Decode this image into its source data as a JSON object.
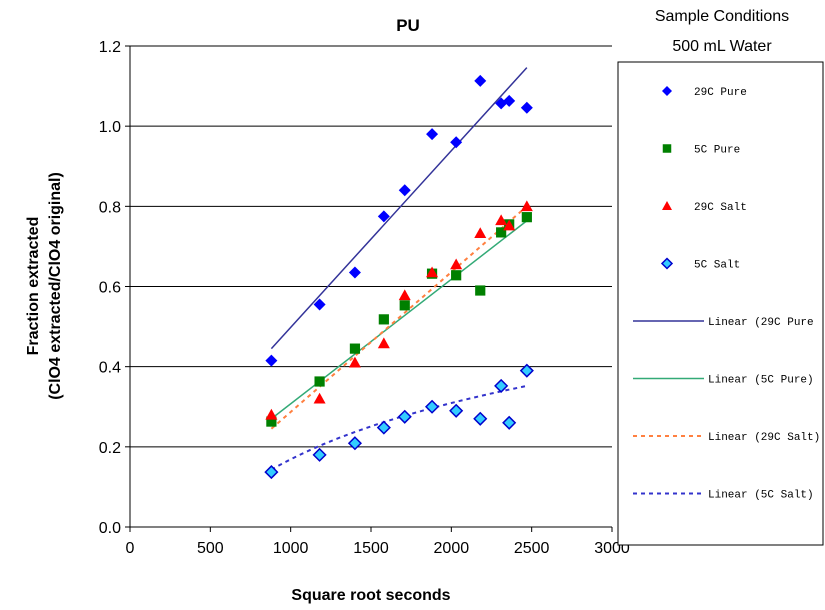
{
  "chart_data": {
    "type": "scatter",
    "title": "PU",
    "xlabel": "Square root seconds",
    "ylabel_line1": "Fraction extracted",
    "ylabel_line2": "(ClO4 extracted/ClO4 original)",
    "xlim": [
      0,
      3000
    ],
    "ylim": [
      0,
      1.2
    ],
    "x_ticks": [
      0,
      500,
      1000,
      1500,
      2000,
      2500,
      3000
    ],
    "y_ticks": [
      0.0,
      0.2,
      0.4,
      0.6,
      0.8,
      1.0,
      1.2
    ],
    "x_tick_labels": [
      "0",
      "500",
      "1000",
      "1500",
      "2000",
      "2500",
      "3000"
    ],
    "y_tick_labels": [
      "0.0",
      "0.2",
      "0.4",
      "0.6",
      "0.8",
      "1.0",
      "1.2"
    ],
    "grid": "horizontal",
    "legend_position": "right",
    "legend_title_line1": "Sample Conditions",
    "legend_title_line2": "500 mL Water",
    "series": [
      {
        "name": "29C Pure",
        "marker": "diamond",
        "color": "#0000FF",
        "x": [
          880,
          1180,
          1400,
          1580,
          1710,
          1880,
          2030,
          2180,
          2310,
          2360,
          2470
        ],
        "y": [
          0.415,
          0.555,
          0.635,
          0.775,
          0.84,
          0.98,
          0.96,
          1.113,
          1.057,
          1.063,
          1.046
        ]
      },
      {
        "name": "5C Pure",
        "marker": "square",
        "color": "#008000",
        "x": [
          880,
          1180,
          1400,
          1580,
          1710,
          1880,
          2030,
          2180,
          2310,
          2360,
          2470
        ],
        "y": [
          0.263,
          0.363,
          0.445,
          0.518,
          0.553,
          0.632,
          0.628,
          0.59,
          0.735,
          0.755,
          0.773
        ]
      },
      {
        "name": "29C Salt",
        "marker": "triangle",
        "color": "#FF0000",
        "x": [
          880,
          1180,
          1400,
          1580,
          1710,
          1880,
          2030,
          2180,
          2310,
          2360,
          2470
        ],
        "y": [
          0.28,
          0.32,
          0.41,
          0.458,
          0.578,
          0.635,
          0.655,
          0.733,
          0.765,
          0.752,
          0.8
        ]
      },
      {
        "name": "5C Salt",
        "marker": "diamond-open",
        "color": "#33CCFF",
        "x": [
          880,
          1180,
          1400,
          1580,
          1710,
          1880,
          2030,
          2180,
          2310,
          2360,
          2470
        ],
        "y": [
          0.137,
          0.18,
          0.209,
          0.248,
          0.275,
          0.3,
          0.29,
          0.27,
          0.352,
          0.26,
          0.39
        ]
      }
    ],
    "trendlines": [
      {
        "name": "Linear (29C Pure",
        "style": "solid",
        "color": "#333399",
        "x": [
          880,
          2470
        ],
        "y": [
          0.445,
          1.146
        ]
      },
      {
        "name": "Linear (5C Pure)",
        "style": "solid",
        "color": "#33AA77",
        "x": [
          880,
          2470
        ],
        "y": [
          0.27,
          0.764
        ]
      },
      {
        "name": "Linear (29C Salt)",
        "style": "dotted",
        "color": "#FF8040",
        "x": [
          880,
          2470
        ],
        "y": [
          0.245,
          0.8
        ]
      },
      {
        "name": "Linear (5C Salt)",
        "style": "dotted",
        "color": "#3333CC",
        "x": [
          880,
          2470
        ],
        "y": [
          0.143,
          0.352
        ],
        "curve": "log"
      }
    ]
  }
}
